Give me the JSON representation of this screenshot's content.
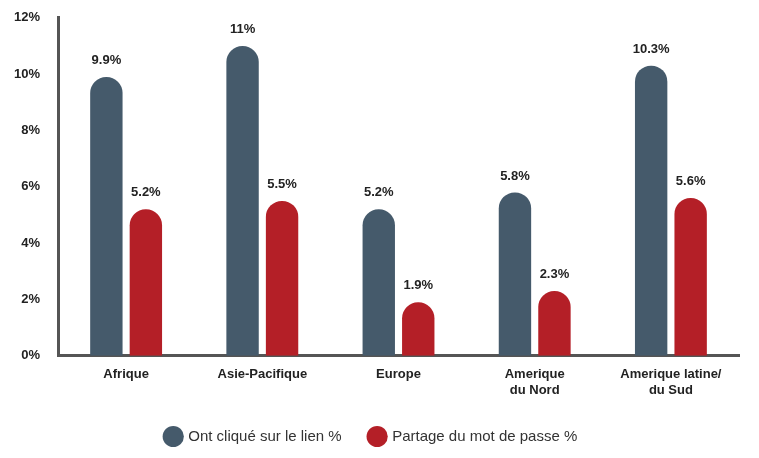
{
  "chart_data": {
    "type": "bar",
    "categories": [
      "Afrique",
      "Asie-Pacifique",
      "Europe",
      "Amerique du Nord",
      "Amerique latine/ du Sud"
    ],
    "series": [
      {
        "name": "Ont cliqué sur le lien %",
        "color": "#455a6b",
        "values": [
          9.9,
          11,
          5.2,
          5.8,
          10.3
        ],
        "value_labels": [
          "9.9%",
          "11%",
          "5.2%",
          "5.8%",
          "10.3%"
        ]
      },
      {
        "name": "Partage du mot de passe %",
        "color": "#b41f27",
        "values": [
          5.2,
          5.5,
          1.9,
          2.3,
          5.6
        ],
        "value_labels": [
          "5.2%",
          "5.5%",
          "1.9%",
          "2.3%",
          "5.6%"
        ]
      }
    ],
    "ylim": [
      0,
      12
    ],
    "yticks": [
      {
        "value": 0,
        "label": "0%"
      },
      {
        "value": 2,
        "label": "2%"
      },
      {
        "value": 4,
        "label": "4%"
      },
      {
        "value": 6,
        "label": "6%"
      },
      {
        "value": 8,
        "label": "8%"
      },
      {
        "value": 10,
        "label": "10%"
      },
      {
        "value": 12,
        "label": "12%"
      }
    ],
    "grid": false,
    "legend": "bottom",
    "data_labels": true
  }
}
